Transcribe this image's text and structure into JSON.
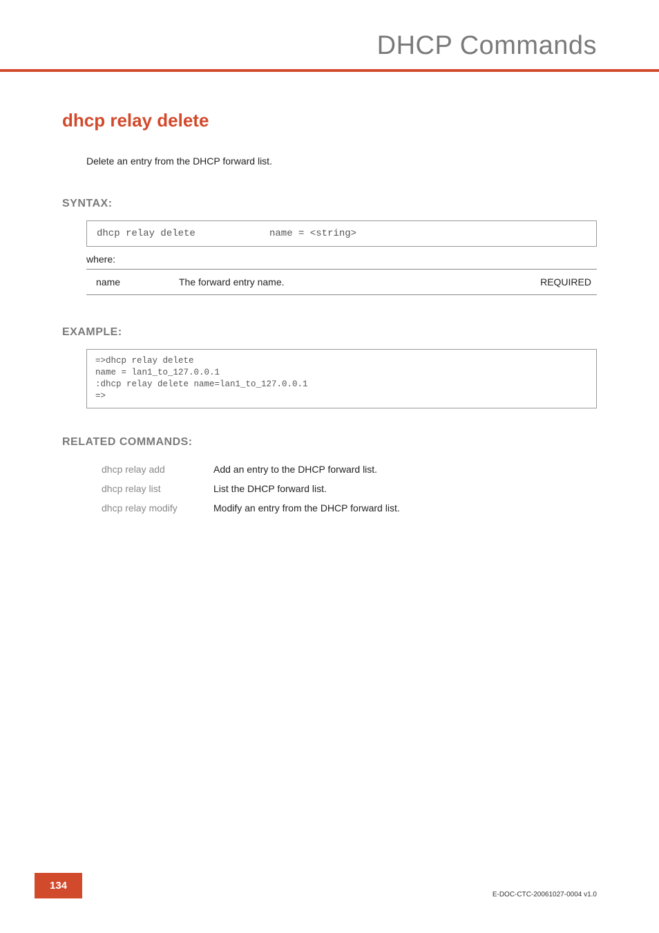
{
  "colors": {
    "accent": "#d24a2c",
    "section_label": "#7a7a7a",
    "mono_text": "#555555",
    "body_text": "#222222",
    "border": "#999999",
    "background": "#ffffff"
  },
  "typography": {
    "chapter_title_fontsize": 38,
    "cmd_title_fontsize": 26,
    "section_label_fontsize": 16,
    "body_fontsize": 14,
    "mono_fontsize": 14,
    "example_fontsize": 12.5,
    "footer_id_fontsize": 10
  },
  "header": {
    "chapter_title": "DHCP Commands"
  },
  "command": {
    "title": "dhcp relay delete",
    "description": "Delete an entry from the DHCP forward list."
  },
  "syntax": {
    "label": "SYNTAX:",
    "command": "dhcp relay delete",
    "args": "name = <string>",
    "where_label": "where:",
    "params": [
      {
        "name": "name",
        "desc": "The forward entry  name.",
        "req": "REQUIRED"
      }
    ]
  },
  "example": {
    "label": "EXAMPLE:",
    "text": "=>dhcp relay delete\nname = lan1_to_127.0.0.1\n:dhcp relay delete name=lan1_to_127.0.0.1\n=>"
  },
  "related": {
    "label": "RELATED COMMANDS:",
    "rows": [
      {
        "cmd": "dhcp relay add",
        "desc": "Add an entry to the DHCP forward list."
      },
      {
        "cmd": "dhcp relay list",
        "desc": "List the DHCP forward list."
      },
      {
        "cmd": "dhcp relay modify",
        "desc": "Modify an entry from the DHCP forward list."
      }
    ]
  },
  "footer": {
    "page_number": "134",
    "doc_id": "E-DOC-CTC-20061027-0004 v1.0"
  }
}
